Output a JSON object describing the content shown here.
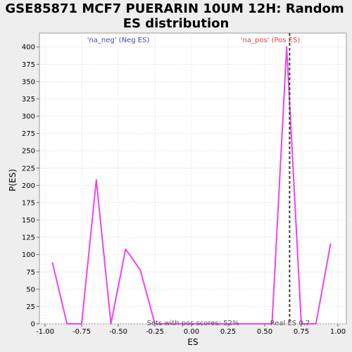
{
  "chart_data": {
    "type": "line",
    "title_line1": "GSE85871 MCF7 PUERARIN 10UM 12H: Random",
    "title_line2": "ES distribution",
    "xlabel": "ES",
    "ylabel": "P(ES)",
    "xlim": [
      -1.0,
      1.0
    ],
    "ylim": [
      0,
      420
    ],
    "x_ticks": [
      -1.0,
      -0.75,
      -0.5,
      -0.25,
      0.0,
      0.25,
      0.5,
      0.75,
      1.0
    ],
    "x_tick_labels": [
      "-1.00",
      "-0.75",
      "-0.50",
      "-0.25",
      "0.00",
      "0.25",
      "0.50",
      "0.75",
      "1.00"
    ],
    "y_ticks": [
      0,
      25,
      50,
      75,
      100,
      125,
      150,
      175,
      200,
      225,
      250,
      275,
      300,
      325,
      350,
      375,
      400
    ],
    "y_tick_labels": [
      "0",
      "25",
      "50",
      "75",
      "100",
      "125",
      "150",
      "175",
      "200",
      "225",
      "250",
      "275",
      "300",
      "325",
      "350",
      "375",
      "400"
    ],
    "grid": true,
    "series": [
      {
        "color": "#ee44ee",
        "x": [
          -0.95,
          -0.85,
          -0.75,
          -0.65,
          -0.55,
          -0.45,
          -0.35,
          -0.25,
          -0.15,
          -0.05,
          0.05,
          0.15,
          0.25,
          0.35,
          0.45,
          0.55,
          0.65,
          0.75,
          0.85,
          0.95
        ],
        "y": [
          89,
          0,
          0,
          208,
          0,
          108,
          78,
          0,
          0,
          0,
          0,
          0,
          0,
          0,
          0,
          0,
          400,
          0,
          0,
          116
        ]
      }
    ],
    "real_es": 0.67,
    "real_es_color": "#404040",
    "annotations": {
      "neg_label": "'na_neg' (Neg ES)",
      "neg_color": "#4444bb",
      "pos_label": "'na_pos' (Pos ES)",
      "pos_color": "#dd4444",
      "sets_label": "Sets with pos scores: 52%",
      "real_es_label": "Real ES 0.7"
    }
  }
}
